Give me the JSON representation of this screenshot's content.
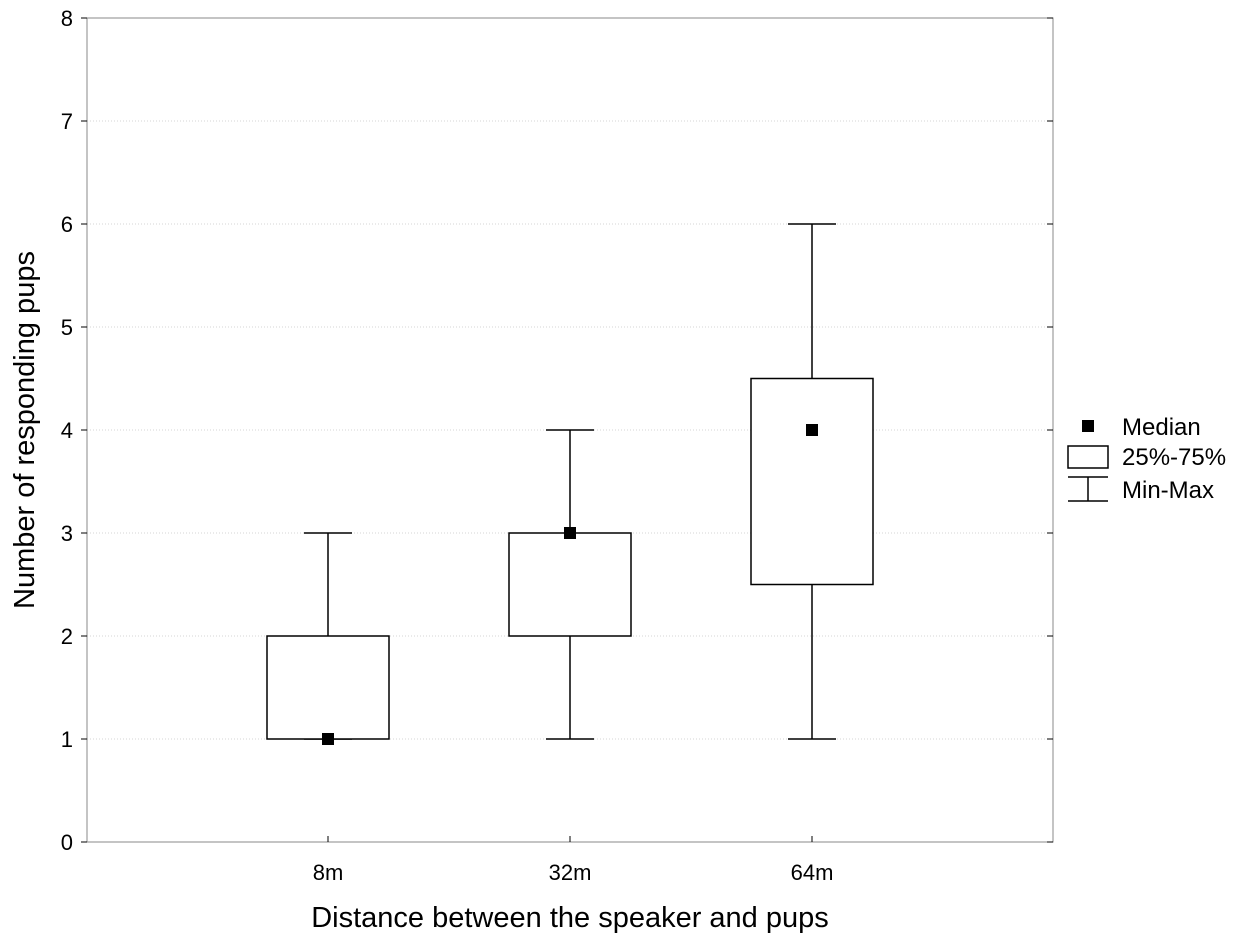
{
  "chart_data": {
    "type": "box",
    "xlabel": "Distance between the speaker and pups",
    "ylabel": "Number of responding pups",
    "ylim": [
      0,
      8
    ],
    "yticks": [
      "0",
      "1",
      "2",
      "3",
      "4",
      "5",
      "6",
      "7",
      "8"
    ],
    "grid": true,
    "legend_position": "right",
    "categories": [
      "8m",
      "32m",
      "64m"
    ],
    "boxes": [
      {
        "category": "8m",
        "min": 1,
        "q1": 1,
        "median": 1,
        "q3": 2,
        "max": 3
      },
      {
        "category": "32m",
        "min": 1,
        "q1": 2,
        "median": 3,
        "q3": 3,
        "max": 4
      },
      {
        "category": "64m",
        "min": 1,
        "q1": 2.5,
        "median": 4,
        "q3": 4.5,
        "max": 6
      }
    ],
    "legend": {
      "median": "Median",
      "box": "25%-75%",
      "whisker": "Min-Max"
    }
  }
}
